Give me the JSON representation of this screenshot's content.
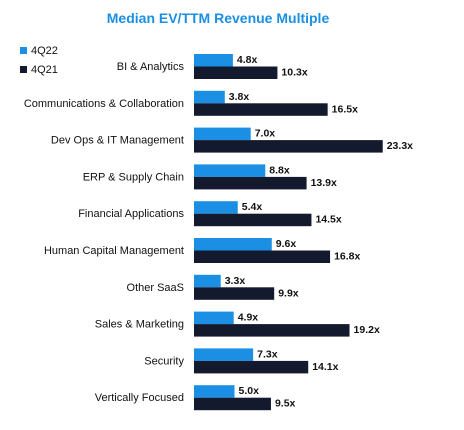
{
  "chart_data": {
    "type": "bar",
    "orientation": "horizontal",
    "title": "Median EV/TTM Revenue Multiple",
    "categories": [
      "BI & Analytics",
      "Communications & Collaboration",
      "Dev Ops & IT Management",
      "ERP & Supply Chain",
      "Financial Applications",
      "Human Capital Management",
      "Other SaaS",
      "Sales & Marketing",
      "Security",
      "Vertically Focused"
    ],
    "series": [
      {
        "name": "4Q22",
        "color": "#1a8fe3",
        "values": [
          4.8,
          3.8,
          7.0,
          8.8,
          5.4,
          9.6,
          3.3,
          4.9,
          7.3,
          5.0
        ],
        "labels": [
          "4.8x",
          "3.8x",
          "7.0x",
          "8.8x",
          "5.4x",
          "9.6x",
          "3.3x",
          "4.9x",
          "7.3x",
          "5.0x"
        ]
      },
      {
        "name": "4Q21",
        "color": "#141a2e",
        "values": [
          10.3,
          16.5,
          23.3,
          13.9,
          14.5,
          16.8,
          9.9,
          19.2,
          14.1,
          9.5
        ],
        "labels": [
          "10.3x",
          "16.5x",
          "23.3x",
          "13.9x",
          "14.5x",
          "16.8x",
          "9.9x",
          "19.2x",
          "14.1x",
          "9.5x"
        ]
      }
    ],
    "legend_position": "top-left",
    "title_color": "#1a8fe3",
    "grid": false
  }
}
